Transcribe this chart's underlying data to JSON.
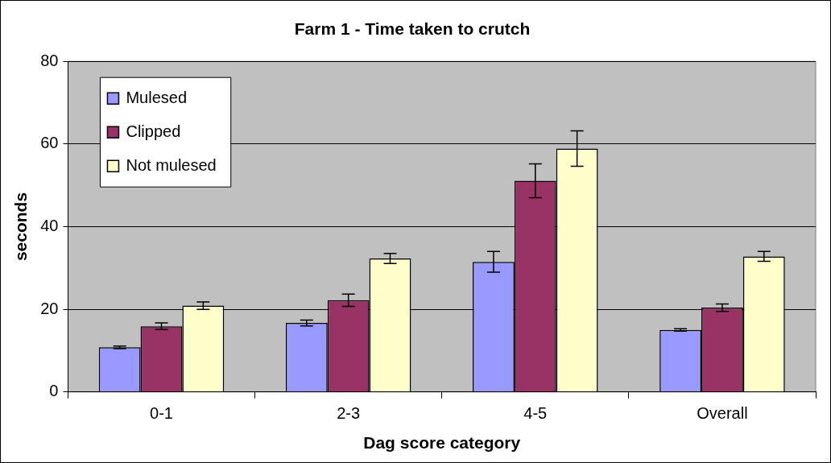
{
  "chart_data": {
    "type": "bar",
    "title": "Farm 1 - Time taken to crutch",
    "xlabel": "Dag score category",
    "ylabel": "seconds",
    "categories": [
      "0-1",
      "2-3",
      "4-5",
      "Overall"
    ],
    "series": [
      {
        "name": "Mulesed",
        "color": "#9999ff",
        "values": [
          10.8,
          16.7,
          31.5,
          15.0
        ],
        "errors": [
          0.3,
          0.7,
          2.5,
          0.3
        ]
      },
      {
        "name": "Clipped",
        "color": "#993366",
        "values": [
          15.9,
          22.2,
          51.1,
          20.4
        ],
        "errors": [
          0.8,
          1.5,
          4.1,
          0.9
        ]
      },
      {
        "name": "Not mulesed",
        "color": "#ffffcc",
        "values": [
          20.9,
          32.3,
          58.9,
          32.8
        ],
        "errors": [
          0.9,
          1.2,
          4.3,
          1.2
        ]
      }
    ],
    "ylim": [
      0,
      80
    ],
    "yticks": [
      0,
      20,
      40,
      60,
      80
    ],
    "grid": "y",
    "legend": "top left"
  }
}
